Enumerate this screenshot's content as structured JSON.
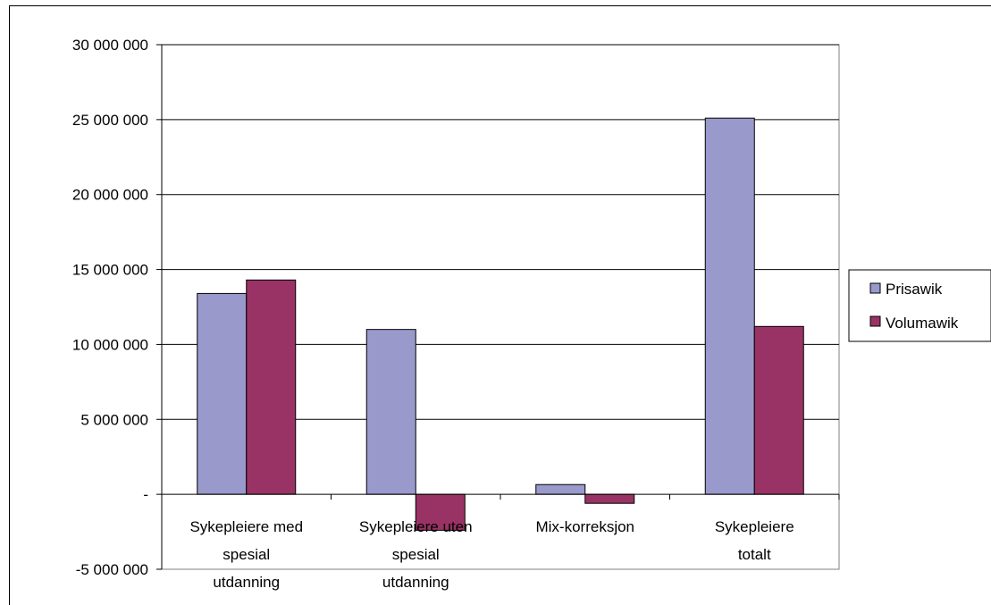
{
  "chart_data": {
    "type": "bar",
    "categories": [
      [
        "Sykepleiere med",
        "spesial",
        "utdanning"
      ],
      [
        "Sykepleiere uten",
        "spesial",
        "utdanning"
      ],
      [
        "Mix-korreksjon"
      ],
      [
        "Sykepleiere",
        "totalt"
      ]
    ],
    "series": [
      {
        "name": "Prisawik",
        "color": "#9999cc",
        "values": [
          13400000,
          11000000,
          650000,
          25100000
        ]
      },
      {
        "name": "Volumawik",
        "color": "#993366",
        "values": [
          14300000,
          -2400000,
          -600000,
          11200000
        ]
      }
    ],
    "ylim": [
      -5000000,
      30000000
    ],
    "yticks": [
      30000000,
      25000000,
      20000000,
      15000000,
      10000000,
      5000000,
      0,
      -5000000
    ],
    "ytick_labels": [
      "30 000 000",
      "25 000 000",
      "20 000 000",
      "15 000 000",
      "10 000 000",
      "5 000 000",
      "-",
      "-5 000 000"
    ],
    "title": "",
    "xlabel": "",
    "ylabel": "",
    "grid": true,
    "legend_position": "right"
  }
}
